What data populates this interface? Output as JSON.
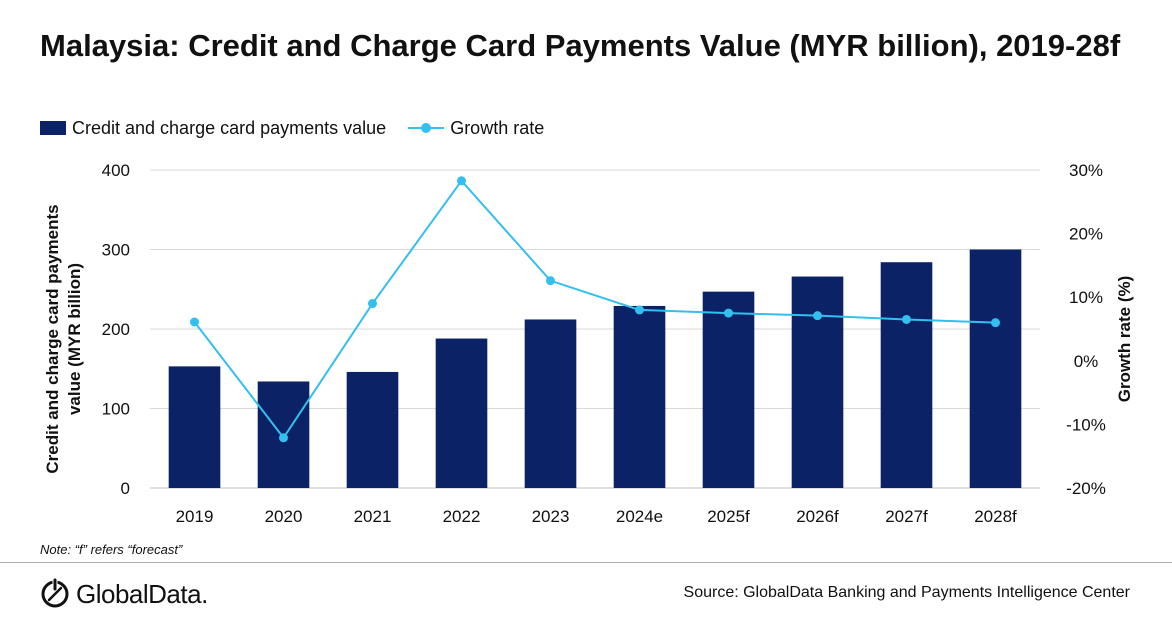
{
  "title": "Malaysia: Credit and Charge Card Payments Value (MYR billion), 2019-28f",
  "legend": {
    "bar_label": "Credit and charge card payments value",
    "line_label": "Growth rate"
  },
  "note": "Note: “f” refers “forecast”",
  "source": "Source: GlobalData Banking and Payments Intelligence Center",
  "logo": {
    "text": "GlobalData.",
    "icon": "globaldata-logo-icon"
  },
  "colors": {
    "bar": "#0c2266",
    "line": "#33bfef",
    "grid": "#d9d9d9",
    "axis": "#bfbfbf",
    "text": "#111111"
  },
  "chart_data": {
    "type": "bar",
    "categories": [
      "2019",
      "2020",
      "2021",
      "2022",
      "2023",
      "2024e",
      "2025f",
      "2026f",
      "2027f",
      "2028f"
    ],
    "series": [
      {
        "name": "Credit and charge card payments value",
        "type": "bar",
        "axis": "left",
        "values": [
          153,
          134,
          146,
          188,
          212,
          229,
          247,
          266,
          284,
          300
        ]
      },
      {
        "name": "Growth rate",
        "type": "line",
        "axis": "right",
        "values": [
          6.1,
          -12.1,
          9.0,
          28.3,
          12.6,
          8.0,
          7.5,
          7.1,
          6.5,
          6.0
        ]
      }
    ],
    "ylabel": "Credit and charge card payments value (MYR billion)",
    "y2label": "Growth rate (%)",
    "ylim": [
      0,
      400
    ],
    "y2lim": [
      -20,
      30
    ],
    "yticks": [
      "0",
      "100",
      "200",
      "300",
      "400"
    ],
    "y2ticks": [
      "-20%",
      "-10%",
      "0%",
      "10%",
      "20%",
      "30%"
    ],
    "grid": true,
    "legend_position": "top-left"
  }
}
